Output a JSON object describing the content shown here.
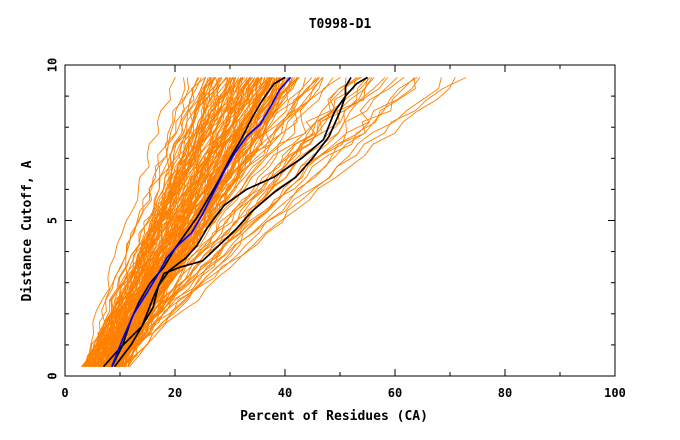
{
  "chart_data": {
    "type": "line",
    "title": "T0998-D1",
    "xlabel": "Percent of Residues (CA)",
    "ylabel": "Distance Cutoff, A",
    "xlim": [
      0,
      100
    ],
    "ylim": [
      0,
      10
    ],
    "xticks": [
      "0",
      "20",
      "40",
      "60",
      "80",
      "100"
    ],
    "yticks": [
      "0",
      "5",
      "10"
    ],
    "grid": false,
    "colors": {
      "background_series": "#ff8000",
      "highlight_black": "#000000",
      "highlight_blue": "#0000ff"
    },
    "background_series_count": 150,
    "highlight_series": [
      {
        "color": "#000000",
        "points": [
          [
            8.5,
            0.3
          ],
          [
            10.5,
            1.0
          ],
          [
            12,
            1.8
          ],
          [
            13.5,
            2.4
          ],
          [
            15.5,
            3.0
          ],
          [
            18,
            3.5
          ],
          [
            20,
            4.1
          ],
          [
            22,
            4.6
          ],
          [
            24,
            5.1
          ],
          [
            26,
            5.7
          ],
          [
            28,
            6.3
          ],
          [
            30,
            7.0
          ],
          [
            32,
            7.6
          ],
          [
            34,
            8.3
          ],
          [
            36,
            8.9
          ],
          [
            38,
            9.4
          ],
          [
            40,
            9.6
          ]
        ]
      },
      {
        "color": "#000000",
        "points": [
          [
            7,
            0.3
          ],
          [
            10,
            0.9
          ],
          [
            14,
            1.6
          ],
          [
            16,
            2.5
          ],
          [
            18,
            3.3
          ],
          [
            21,
            3.5
          ],
          [
            25,
            3.7
          ],
          [
            28,
            4.2
          ],
          [
            31,
            4.7
          ],
          [
            34,
            5.3
          ],
          [
            38,
            5.9
          ],
          [
            42,
            6.4
          ],
          [
            45,
            7.0
          ],
          [
            48,
            7.7
          ],
          [
            50,
            8.5
          ],
          [
            51,
            9.0
          ],
          [
            51,
            9.3
          ],
          [
            52,
            9.6
          ]
        ]
      },
      {
        "color": "#000000",
        "points": [
          [
            9,
            0.3
          ],
          [
            12,
            1.0
          ],
          [
            14,
            1.6
          ],
          [
            16,
            2.2
          ],
          [
            17,
            2.9
          ],
          [
            19,
            3.4
          ],
          [
            22,
            3.8
          ],
          [
            24,
            4.2
          ],
          [
            26,
            4.8
          ],
          [
            29,
            5.5
          ],
          [
            33,
            6.0
          ],
          [
            38,
            6.4
          ],
          [
            43,
            7.0
          ],
          [
            47,
            7.6
          ],
          [
            49,
            8.5
          ],
          [
            51,
            9.0
          ],
          [
            53,
            9.4
          ],
          [
            55,
            9.6
          ]
        ]
      },
      {
        "color": "#0000ff",
        "points": [
          [
            8.5,
            0.3
          ],
          [
            10.5,
            1.2
          ],
          [
            12.5,
            2.0
          ],
          [
            15,
            2.7
          ],
          [
            17,
            3.3
          ],
          [
            18.5,
            3.8
          ],
          [
            20.5,
            4.2
          ],
          [
            23,
            4.6
          ],
          [
            25,
            5.2
          ],
          [
            27,
            5.9
          ],
          [
            29,
            6.6
          ],
          [
            31,
            7.2
          ],
          [
            33,
            7.7
          ],
          [
            35.5,
            8.1
          ],
          [
            37.5,
            8.7
          ],
          [
            39,
            9.2
          ],
          [
            41,
            9.6
          ]
        ]
      }
    ]
  }
}
